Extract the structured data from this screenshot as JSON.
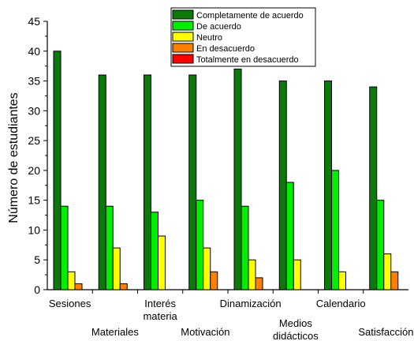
{
  "chart_data": {
    "type": "bar",
    "ylabel": "Número de estudiantes",
    "xlabel": "",
    "ylim": [
      0,
      45
    ],
    "yticks": [
      0,
      5,
      10,
      15,
      20,
      25,
      30,
      35,
      40,
      45
    ],
    "categories": [
      [
        "Sesiones"
      ],
      [
        "Materiales"
      ],
      [
        "Interés",
        "materia"
      ],
      [
        "Motivación"
      ],
      [
        "Dinamización"
      ],
      [
        "Medios",
        "didácticos"
      ],
      [
        "Calendario"
      ],
      [
        "Satisfacción"
      ]
    ],
    "category_label_rows": [
      0,
      1,
      0,
      1,
      0,
      1,
      0,
      1
    ],
    "series": [
      {
        "name": "Completamente de acuerdo",
        "color": "#0b7a0b",
        "values": [
          40,
          36,
          36,
          36,
          37,
          35,
          35,
          34
        ]
      },
      {
        "name": "De acuerdo",
        "color": "#00ee00",
        "values": [
          14,
          14,
          13,
          15,
          14,
          18,
          20,
          15
        ]
      },
      {
        "name": "Neutro",
        "color": "#ffff00",
        "values": [
          3,
          7,
          9,
          7,
          5,
          5,
          3,
          6
        ]
      },
      {
        "name": "En desacuerdo",
        "color": "#ff7f00",
        "values": [
          1,
          1,
          0,
          3,
          2,
          0,
          0,
          3
        ]
      },
      {
        "name": "Totalmente en desacuerdo",
        "color": "#ff0000",
        "values": [
          0,
          0,
          0,
          0,
          0,
          0,
          0,
          0
        ]
      }
    ],
    "legend_position": "top-right",
    "grid": false
  }
}
